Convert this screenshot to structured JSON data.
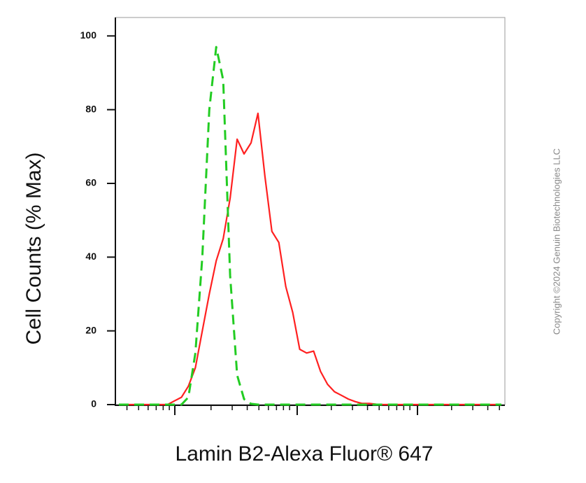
{
  "chart_data": {
    "type": "line",
    "y_label": "Cell Counts (% Max)",
    "x_label": "Lamin B2-Alexa Fluor® 647",
    "annotation": "Copyright ©2024 Genuin Biotechnologies LLC",
    "categories": [
      null,
      null,
      null,
      null,
      null,
      null,
      null,
      null,
      null,
      null,
      null,
      null,
      null,
      null,
      null,
      null,
      null,
      null,
      null,
      null,
      null,
      null,
      null,
      null,
      null,
      null,
      null,
      null,
      null,
      null,
      null,
      null,
      null,
      null,
      null,
      null,
      null,
      null,
      null,
      null,
      null,
      null,
      null,
      null,
      null,
      null,
      null,
      null,
      null,
      null,
      null,
      null,
      null,
      null,
      null,
      null
    ],
    "series": [
      {
        "color": "#ff2020",
        "dashed": false,
        "values": [
          0,
          0,
          0,
          0,
          0,
          0,
          0,
          0,
          1,
          2,
          5,
          10,
          20,
          30,
          39,
          45,
          56,
          72,
          68,
          71,
          79,
          62,
          47,
          44,
          32,
          25,
          15,
          14,
          14.5,
          9,
          5.5,
          3.5,
          2.5,
          1.5,
          0.8,
          0.3,
          0.3,
          0.1,
          0,
          0,
          0,
          0,
          0,
          0,
          0,
          0,
          0,
          0,
          0,
          0,
          0,
          0,
          0,
          0,
          0,
          0
        ]
      },
      {
        "color": "#22cc22",
        "dashed": true,
        "values": [
          0,
          0,
          0,
          0,
          0,
          0,
          0,
          0,
          0,
          0,
          2,
          14,
          40,
          80,
          97,
          88,
          35,
          8,
          1.5,
          0.2,
          0,
          0,
          0,
          0,
          0,
          0,
          0,
          0,
          0,
          0,
          0,
          0,
          0,
          0,
          0,
          0,
          0,
          0,
          0,
          0,
          0,
          0,
          0,
          0,
          0,
          0,
          0,
          0,
          0,
          0,
          0,
          0,
          0,
          0,
          0,
          0
        ]
      }
    ],
    "ylim": [
      0,
      105
    ],
    "yticks": [
      0,
      20,
      40,
      60,
      80,
      100
    ],
    "xscale": "log"
  }
}
